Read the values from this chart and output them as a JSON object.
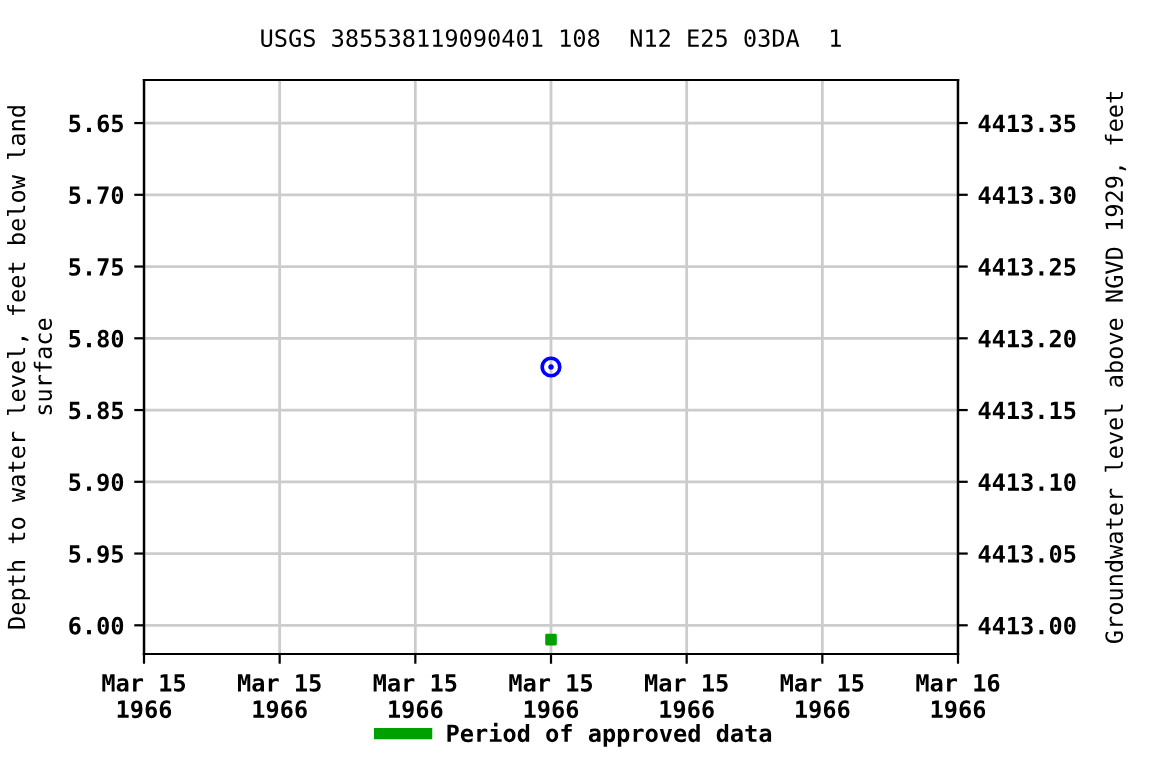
{
  "chart_data": {
    "type": "scatter",
    "title": "USGS 385538119090401 108  N12 E25 03DA  1",
    "ylabel": "Depth to water level, feet below land\nsurface",
    "y2label": "Groundwater level above NGVD 1929, feet",
    "x": [
      "1966-03-15T12:00"
    ],
    "series": [
      {
        "color": "#0000ff",
        "values": [
          5.82
        ],
        "marker": "circle"
      },
      {
        "name": "Period of approved data",
        "color": "#00a000",
        "values": [
          6.01
        ],
        "marker": "square"
      }
    ],
    "xlim": [
      "1966-03-15T00:00",
      "1966-03-16T00:00"
    ],
    "xticks": [
      {
        "value": "1966-03-15T00:00",
        "label": "Mar 15\n1966"
      },
      {
        "value": "1966-03-15T04:00",
        "label": "Mar 15\n1966"
      },
      {
        "value": "1966-03-15T08:00",
        "label": "Mar 15\n1966"
      },
      {
        "value": "1966-03-15T12:00",
        "label": "Mar 15\n1966"
      },
      {
        "value": "1966-03-15T16:00",
        "label": "Mar 15\n1966"
      },
      {
        "value": "1966-03-15T20:00",
        "label": "Mar 15\n1966"
      },
      {
        "value": "1966-03-16T00:00",
        "label": "Mar 16\n1966"
      }
    ],
    "ylim": [
      6.02,
      5.62
    ],
    "yticks": [
      {
        "value": 5.65,
        "label": "5.65"
      },
      {
        "value": 5.7,
        "label": "5.70"
      },
      {
        "value": 5.75,
        "label": "5.75"
      },
      {
        "value": 5.8,
        "label": "5.80"
      },
      {
        "value": 5.85,
        "label": "5.85"
      },
      {
        "value": 5.9,
        "label": "5.90"
      },
      {
        "value": 5.95,
        "label": "5.95"
      },
      {
        "value": 6.0,
        "label": "6.00"
      }
    ],
    "y2lim": [
      4412.98,
      4413.38
    ],
    "y2ticks": [
      {
        "value": 4413.35,
        "label": "4413.35"
      },
      {
        "value": 4413.3,
        "label": "4413.30"
      },
      {
        "value": 4413.25,
        "label": "4413.25"
      },
      {
        "value": 4413.2,
        "label": "4413.20"
      },
      {
        "value": 4413.15,
        "label": "4413.15"
      },
      {
        "value": 4413.1,
        "label": "4413.10"
      },
      {
        "value": 4413.05,
        "label": "4413.05"
      },
      {
        "value": 4413.0,
        "label": "4413.00"
      }
    ],
    "grid": true,
    "legend": "bottom"
  }
}
